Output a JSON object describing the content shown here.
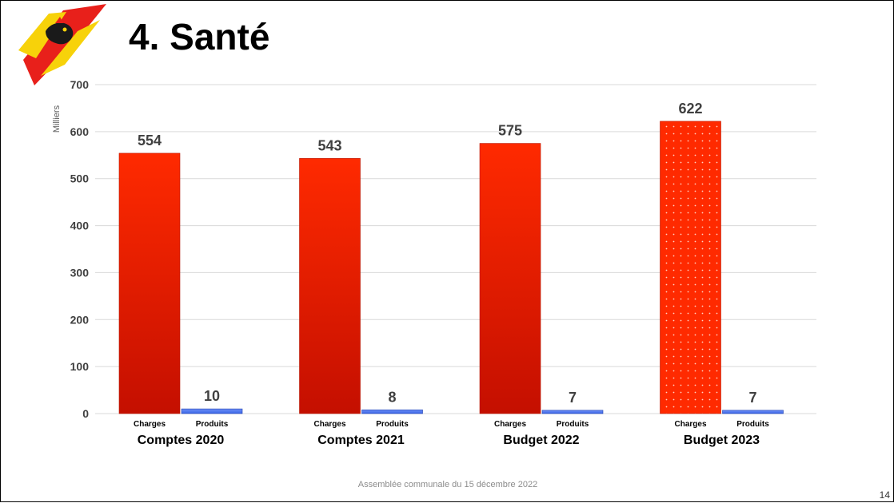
{
  "slide": {
    "title": "4.   Santé",
    "footer": "Assemblée communale du 15 décembre 2022",
    "page_number": "14"
  },
  "colors": {
    "charges": "#ff2a00",
    "charges_dark": "#c40f00",
    "produits": "#3b66e8",
    "gridline": "#d9d9d9",
    "label": "#404040"
  },
  "chart_data": {
    "type": "bar",
    "units_label": "Milliers",
    "ylim": [
      0,
      700
    ],
    "yticks": [
      0,
      100,
      200,
      300,
      400,
      500,
      600,
      700
    ],
    "grid": true,
    "categories": [
      "Comptes 2020",
      "Comptes 2021",
      "Budget 2022",
      "Budget 2023"
    ],
    "series": [
      {
        "name": "Charges",
        "values": [
          554,
          543,
          575,
          622
        ]
      },
      {
        "name": "Produits",
        "values": [
          10,
          8,
          7,
          7
        ]
      }
    ],
    "highlight": {
      "category": "Budget 2023",
      "pattern": "dotted"
    }
  }
}
